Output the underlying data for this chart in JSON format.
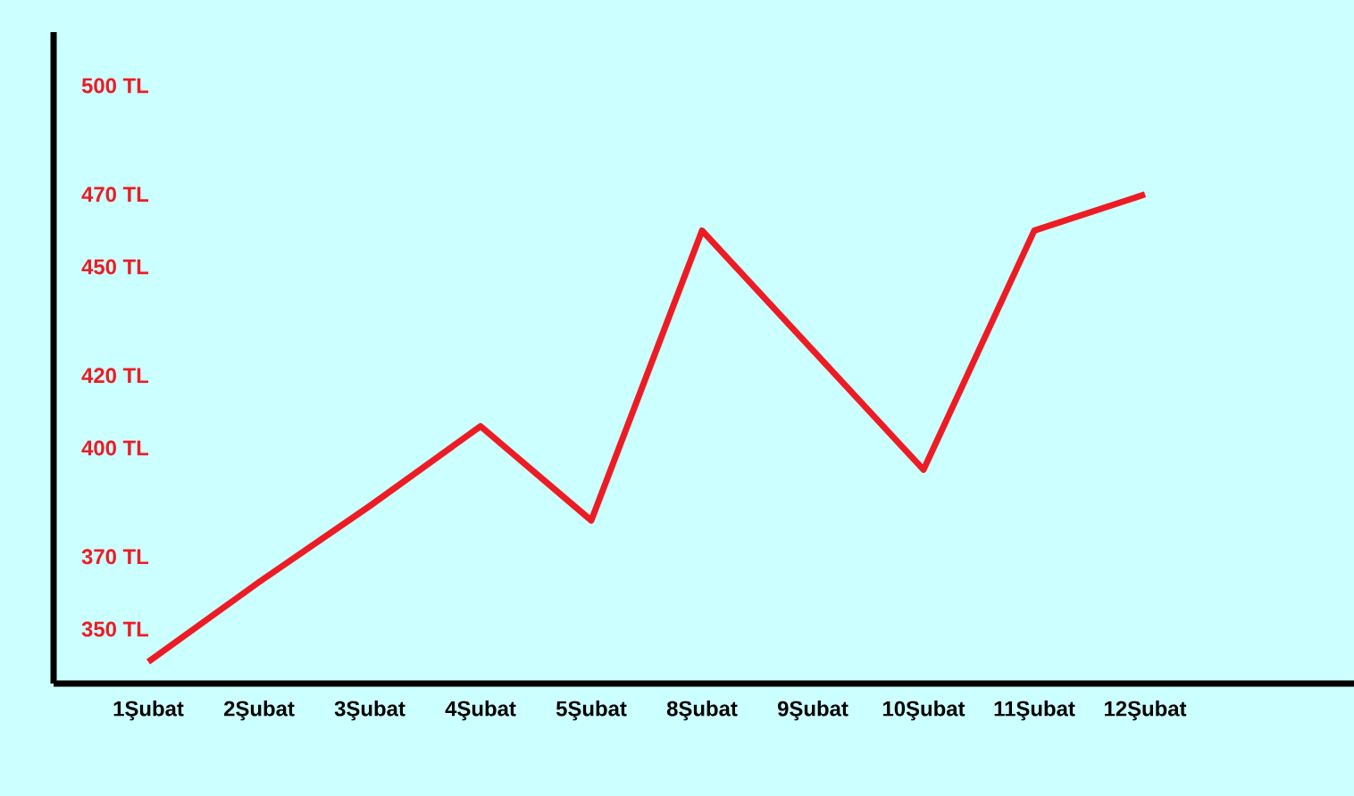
{
  "chart_data": {
    "type": "line",
    "categories": [
      "1Şubat",
      "2Şubat",
      "3Şubat",
      "4Şubat",
      "5Şubat",
      "8Şubat",
      "9Şubat",
      "10Şubat",
      "11Şubat",
      "12Şubat"
    ],
    "values": [
      341,
      363,
      384,
      406,
      380,
      460,
      427,
      394,
      460,
      470
    ],
    "color": "#ed1c24",
    "line_style": "solid",
    "ylim": [
      335,
      500
    ],
    "yticks": [
      {
        "value": 350,
        "label": "350 TL"
      },
      {
        "value": 370,
        "label": "370 TL"
      },
      {
        "value": 400,
        "label": "400 TL"
      },
      {
        "value": 420,
        "label": "420 TL"
      },
      {
        "value": 450,
        "label": "450 TL"
      },
      {
        "value": 470,
        "label": "470 TL"
      },
      {
        "value": 500,
        "label": "500 TL"
      }
    ]
  }
}
